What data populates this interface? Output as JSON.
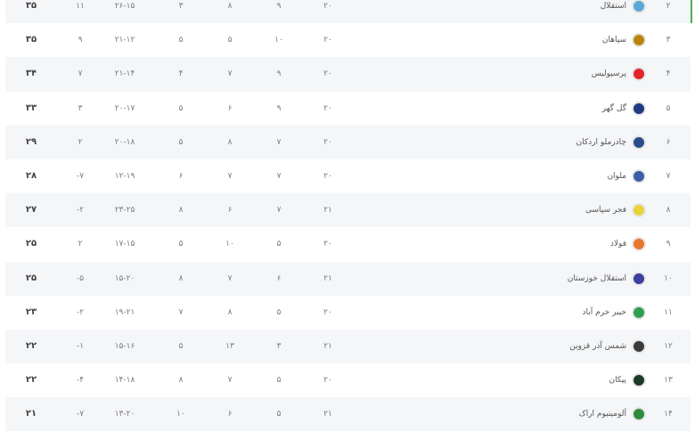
{
  "table": {
    "rows": [
      {
        "rank": "۲",
        "team": "استقلال",
        "logo_color": "#5aa9d6",
        "played": "۲۰",
        "won": "۹",
        "drawn": "۸",
        "lost": "۳",
        "goals": "۲۶-۱۵",
        "gd": "۱۱",
        "points": "۳۵",
        "highlight": true
      },
      {
        "rank": "۳",
        "team": "سپاهان",
        "logo_color": "#b8860b",
        "played": "۲۰",
        "won": "۱۰",
        "drawn": "۵",
        "lost": "۵",
        "goals": "۲۱-۱۲",
        "gd": "۹",
        "points": "۳۵"
      },
      {
        "rank": "۴",
        "team": "پرسپولیس",
        "logo_color": "#e0262b",
        "played": "۲۰",
        "won": "۹",
        "drawn": "۷",
        "lost": "۴",
        "goals": "۲۱-۱۴",
        "gd": "۷",
        "points": "۳۴"
      },
      {
        "rank": "۵",
        "team": "گل گهر",
        "logo_color": "#1f3a80",
        "played": "۲۰",
        "won": "۹",
        "drawn": "۶",
        "lost": "۵",
        "goals": "۲۰-۱۷",
        "gd": "۳",
        "points": "۳۳"
      },
      {
        "rank": "۶",
        "team": "چادرملو اردکان",
        "logo_color": "#2b4c8c",
        "played": "۲۰",
        "won": "۷",
        "drawn": "۸",
        "lost": "۵",
        "goals": "۲۰-۱۸",
        "gd": "۲",
        "points": "۲۹"
      },
      {
        "rank": "۷",
        "team": "ملوان",
        "logo_color": "#3c5ea8",
        "played": "۲۰",
        "won": "۷",
        "drawn": "۷",
        "lost": "۶",
        "goals": "۱۲-۱۹",
        "gd": "-۷",
        "points": "۲۸"
      },
      {
        "rank": "۸",
        "team": "فجر سپاسی",
        "logo_color": "#e8d33a",
        "played": "۲۱",
        "won": "۷",
        "drawn": "۶",
        "lost": "۸",
        "goals": "۲۳-۲۵",
        "gd": "-۲",
        "points": "۲۷"
      },
      {
        "rank": "۹",
        "team": "فولاد",
        "logo_color": "#e8772e",
        "played": "۲۰",
        "won": "۵",
        "drawn": "۱۰",
        "lost": "۵",
        "goals": "۱۷-۱۵",
        "gd": "۲",
        "points": "۲۵"
      },
      {
        "rank": "۱۰",
        "team": "استقلال خوزستان",
        "logo_color": "#3b3f9e",
        "played": "۲۱",
        "won": "۶",
        "drawn": "۷",
        "lost": "۸",
        "goals": "۱۵-۲۰",
        "gd": "-۵",
        "points": "۲۵"
      },
      {
        "rank": "۱۱",
        "team": "خیبر خرم آباد",
        "logo_color": "#2e9e4f",
        "played": "۲۰",
        "won": "۵",
        "drawn": "۸",
        "lost": "۷",
        "goals": "۱۹-۲۱",
        "gd": "-۲",
        "points": "۲۳"
      },
      {
        "rank": "۱۲",
        "team": "شمس آذر قزوین",
        "logo_color": "#3a3a3a",
        "played": "۲۱",
        "won": "۳",
        "drawn": "۱۳",
        "lost": "۵",
        "goals": "۱۵-۱۶",
        "gd": "-۱",
        "points": "۲۲"
      },
      {
        "rank": "۱۳",
        "team": "پیکان",
        "logo_color": "#1e3b2a",
        "played": "۲۰",
        "won": "۵",
        "drawn": "۷",
        "lost": "۸",
        "goals": "۱۴-۱۸",
        "gd": "-۴",
        "points": "۲۲"
      },
      {
        "rank": "۱۴",
        "team": "آلومینیوم اراک",
        "logo_color": "#2f8a3e",
        "played": "۲۱",
        "won": "۵",
        "drawn": "۶",
        "lost": "۱۰",
        "goals": "۱۳-۲۰",
        "gd": "-۷",
        "points": "۲۱"
      }
    ]
  }
}
